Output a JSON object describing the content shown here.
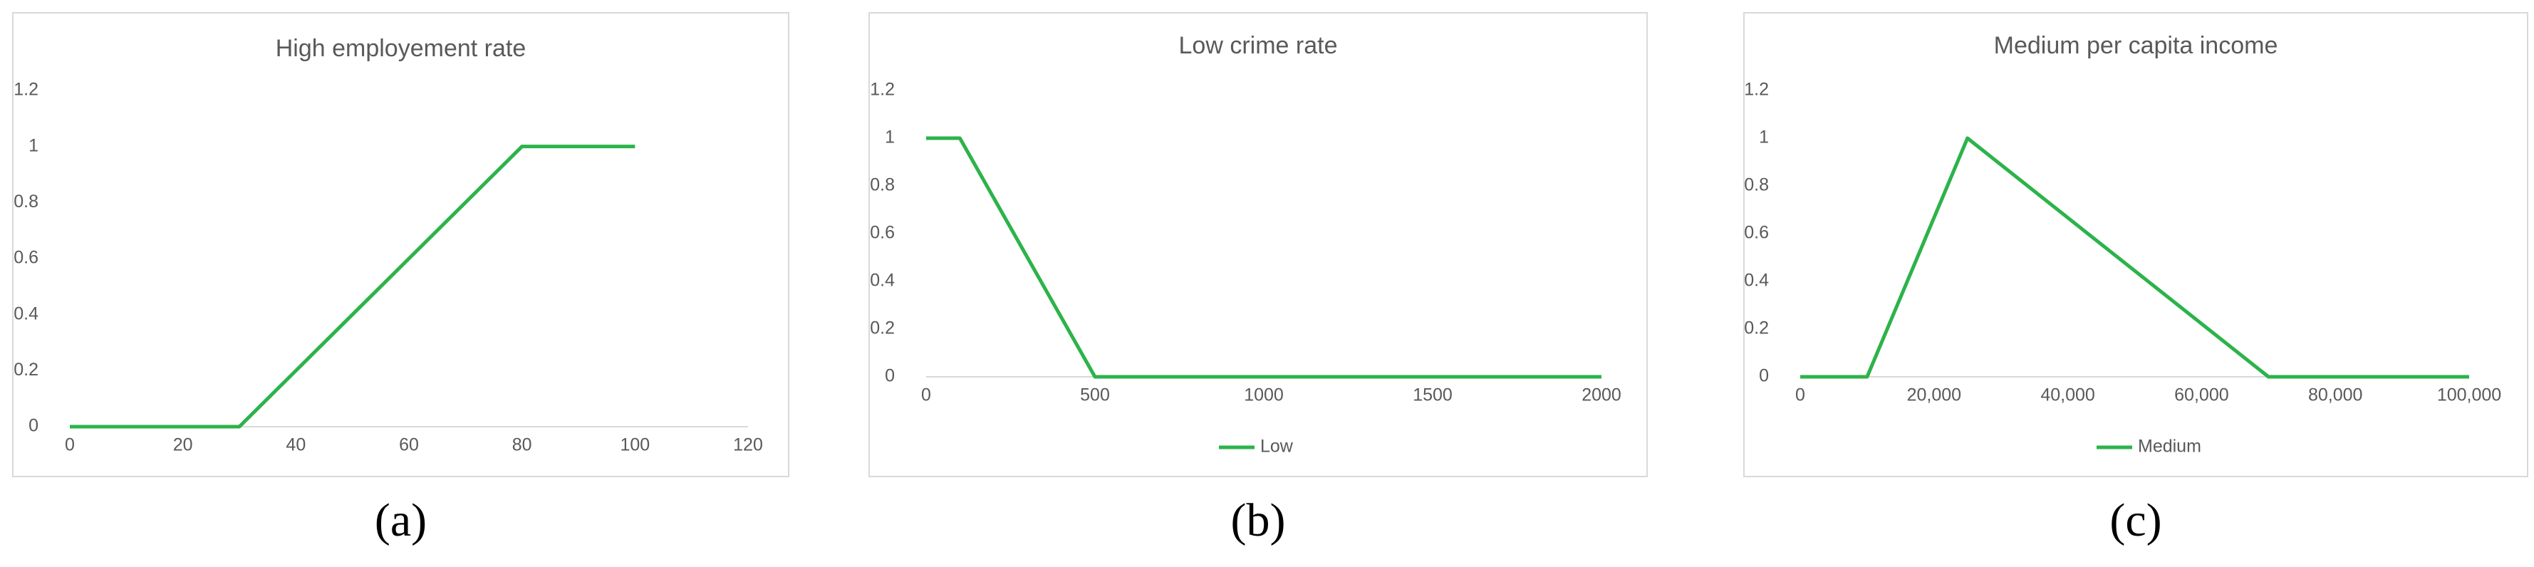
{
  "chart_data": [
    {
      "type": "line",
      "title": "High employement rate",
      "caption": "(a)",
      "x": [
        0,
        30,
        80,
        100
      ],
      "series": [
        {
          "color": "#2cb34a",
          "values": [
            0,
            0,
            1,
            1
          ]
        }
      ],
      "xlim": [
        0,
        120
      ],
      "xticks": [
        0,
        20,
        40,
        60,
        80,
        100,
        120
      ],
      "ylim": [
        0,
        1.2
      ],
      "yticks": [
        0,
        0.2,
        0.4,
        0.6,
        0.8,
        1,
        1.2
      ],
      "legend": false
    },
    {
      "type": "line",
      "title": "Low crime rate",
      "caption": "(b)",
      "x": [
        0,
        100,
        500,
        2000
      ],
      "series": [
        {
          "name": "Low",
          "color": "#2cb34a",
          "values": [
            1,
            1,
            0,
            0
          ]
        }
      ],
      "xlim": [
        0,
        2000
      ],
      "xticks": [
        0,
        500,
        1000,
        1500,
        2000
      ],
      "ylim": [
        0,
        1.2
      ],
      "yticks": [
        0,
        0.2,
        0.4,
        0.6,
        0.8,
        1,
        1.2
      ],
      "legend": "bottom"
    },
    {
      "type": "line",
      "title": "Medium per capita income",
      "caption": "(c)",
      "x": [
        0,
        10000,
        25000,
        70000,
        100000
      ],
      "series": [
        {
          "name": "Medium",
          "color": "#2cb34a",
          "values": [
            0,
            0,
            1,
            0,
            0
          ]
        }
      ],
      "xlim": [
        0,
        100000
      ],
      "xticks": [
        0,
        {
          "value": 20000,
          "label": "20,000"
        },
        {
          "value": 40000,
          "label": "40,000"
        },
        {
          "value": 60000,
          "label": "60,000"
        },
        {
          "value": 80000,
          "label": "80,000"
        },
        {
          "value": 100000,
          "label": "100,000"
        }
      ],
      "ylim": [
        0,
        1.2
      ],
      "yticks": [
        0,
        0.2,
        0.4,
        0.6,
        0.8,
        1,
        1.2
      ],
      "legend": "bottom"
    }
  ]
}
